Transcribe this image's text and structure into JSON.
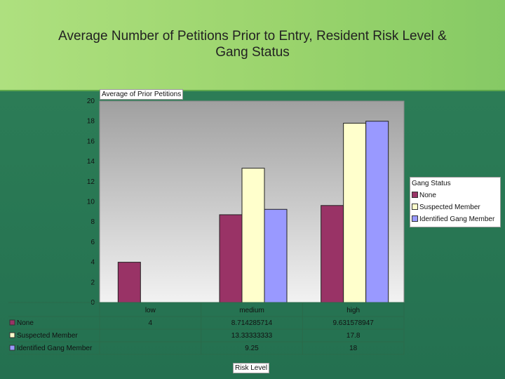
{
  "title": "Average Number of Petitions Prior to Entry, Resident Risk Level & Gang Status",
  "colors": {
    "none": "#993366",
    "suspected": "#ffffcc",
    "identified": "#9999ff",
    "plot_bg_top": "#a0a0a0",
    "plot_bg_bottom": "#f2f2f2"
  },
  "chart_data": {
    "type": "bar",
    "title": "Average Number of Petitions Prior to Entry, Resident Risk Level & Gang Status",
    "ylabel": "Average of Prior Petitions",
    "xlabel": "Risk Level",
    "categories": [
      "low",
      "medium",
      "high"
    ],
    "ylim": [
      0,
      20
    ],
    "yticks": [
      "0",
      "2",
      "4",
      "6",
      "8",
      "10",
      "12",
      "14",
      "16",
      "18",
      "20"
    ],
    "legend_title": "Gang Status",
    "legend_position": "right",
    "grid": false,
    "series": [
      {
        "name": "None",
        "values": [
          4,
          8.714285714,
          9.631578947
        ],
        "labels": [
          "4",
          "8.714285714",
          "9.631578947"
        ]
      },
      {
        "name": "Suspected Member",
        "values": [
          null,
          13.33333333,
          17.8
        ],
        "labels": [
          "",
          "13.33333333",
          "17.8"
        ]
      },
      {
        "name": "Identified Gang Member",
        "values": [
          null,
          9.25,
          18
        ],
        "labels": [
          "",
          "9.25",
          "18"
        ]
      }
    ]
  }
}
